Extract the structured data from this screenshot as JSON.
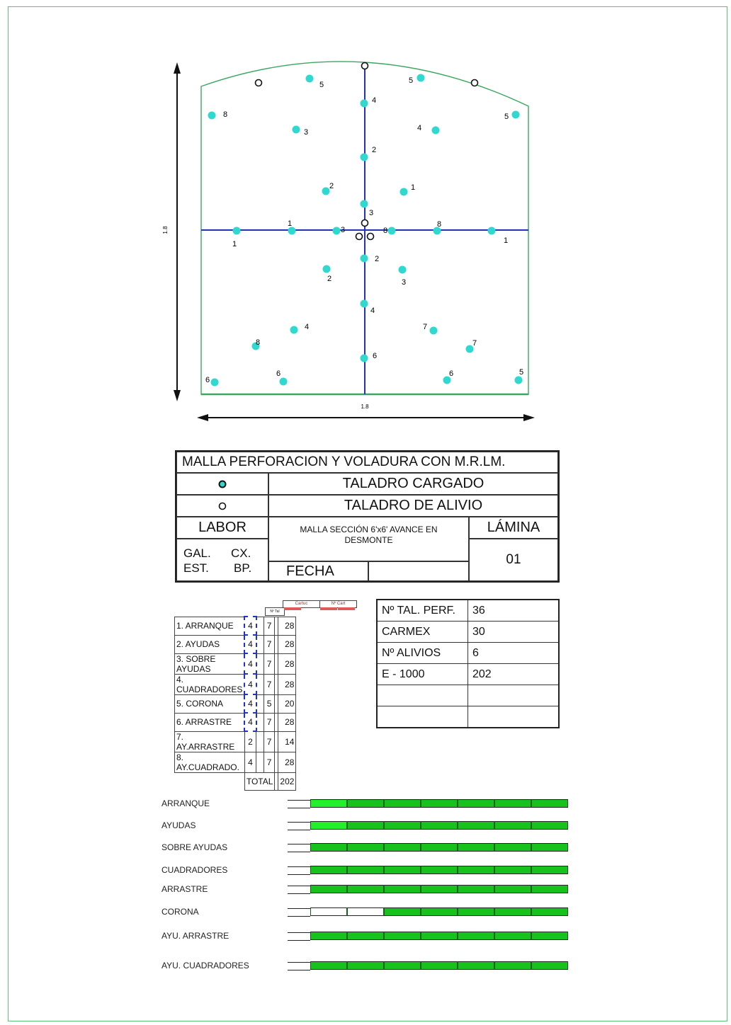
{
  "diagram": {
    "dim_vertical": "1.8",
    "dim_horizontal": "1.8",
    "hole_labels": [
      "5",
      "5",
      "8",
      "5",
      "4",
      "3",
      "4",
      "2",
      "2",
      "1",
      "3",
      "1",
      "1",
      "3",
      "8",
      "8",
      "1",
      "2",
      "2",
      "3",
      "4",
      "4",
      "7",
      "8",
      "7",
      "6",
      "6",
      "6",
      "6",
      "5"
    ]
  },
  "title_block": {
    "title": "MALLA PERFORACION Y VOLADURA CON M.R.LM.",
    "legend_loaded": "TALADRO CARGADO",
    "legend_relief": "TALADRO DE ALIVIO",
    "labor": "LABOR",
    "malla_line1": "MALLA SECCIÓN 6'x6'   AVANCE EN",
    "malla_line2": "DESMONTE",
    "lamina": "LÁMINA",
    "gal": "GAL.",
    "cx": "CX.",
    "est": "EST.",
    "bp": "BP.",
    "fecha": "FECHA",
    "lamina_num": "01"
  },
  "holes_table": {
    "header_cartuchos": "Cartuc",
    "header_ncart": "Nº Cart",
    "header_ntal": "Nº Tal",
    "rows": [
      {
        "name": "1. ARRANQUE",
        "n": "4",
        "c": "7",
        "t": "28"
      },
      {
        "name": "2. AYUDAS",
        "n": "4",
        "c": "7",
        "t": "28"
      },
      {
        "name": "3. SOBRE AYUDAS",
        "n": "4",
        "c": "7",
        "t": "28"
      },
      {
        "name": "4. CUADRADORES",
        "n": "4",
        "c": "7",
        "t": "28"
      },
      {
        "name": "5. CORONA",
        "n": "4",
        "c": "5",
        "t": "20"
      },
      {
        "name": "6. ARRASTRE",
        "n": "4",
        "c": "7",
        "t": "28"
      },
      {
        "name": "7. AY.ARRASTRE",
        "n": "2",
        "c": "7",
        "t": "14"
      },
      {
        "name": "8. AY.CUADRADO.",
        "n": "4",
        "c": "7",
        "t": "28"
      }
    ],
    "total_label": "TOTAL",
    "total_value": "202"
  },
  "summary": [
    {
      "label": "Nº TAL. PERF.",
      "value": "36"
    },
    {
      "label": "CARMEX",
      "value": "30"
    },
    {
      "label": "Nº ALIVIOS",
      "value": "6"
    },
    {
      "label": "E - 1000",
      "value": "202"
    },
    {
      "label": "",
      "value": ""
    },
    {
      "label": "",
      "value": ""
    }
  ],
  "timeline": [
    {
      "label": "ARRANQUE",
      "empty_segments": 0,
      "bright_segments": 1
    },
    {
      "label": "AYUDAS",
      "empty_segments": 0,
      "bright_segments": 1
    },
    {
      "label": "SOBRE AYUDAS",
      "empty_segments": 0,
      "bright_segments": 0
    },
    {
      "label": "CUADRADORES",
      "empty_segments": 0,
      "bright_segments": 0
    },
    {
      "label": "ARRASTRE",
      "empty_segments": 0,
      "bright_segments": 0
    },
    {
      "label": "CORONA",
      "empty_segments": 2,
      "bright_segments": 0
    },
    {
      "label": "AYU. ARRASTRE",
      "empty_segments": 0,
      "bright_segments": 0
    },
    {
      "label": "AYU. CUADRADORES",
      "empty_segments": 0,
      "bright_segments": 0
    }
  ],
  "colors": {
    "loaded_hole": "#2fd9cf",
    "axis": "#2233bb",
    "outline": "#3aa860",
    "bar_fill": "#18c21c",
    "bar_bright": "#22f02a"
  }
}
